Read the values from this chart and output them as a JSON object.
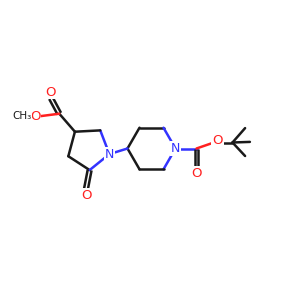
{
  "bg": "#ffffff",
  "bc": "#1a1a1a",
  "nc": "#3333ff",
  "oc": "#ff2020",
  "figsize": [
    3.0,
    3.0
  ],
  "dpi": 100,
  "xlim": [
    0.0,
    10.0
  ],
  "ylim": [
    1.5,
    8.5
  ]
}
